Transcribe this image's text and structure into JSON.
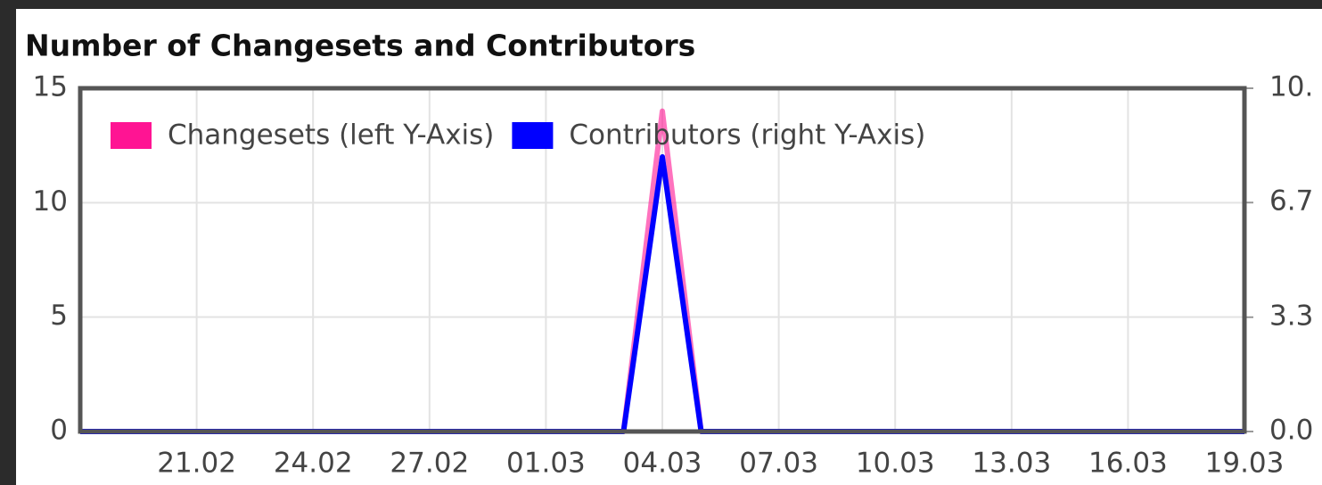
{
  "chart_data": {
    "type": "line",
    "title": "Number of Changesets and Contributors",
    "categories": [
      null,
      null,
      null,
      "21.02",
      null,
      null,
      "24.02",
      null,
      null,
      "27.02",
      null,
      null,
      "01.03",
      null,
      null,
      "04.03",
      null,
      null,
      "07.03",
      null,
      null,
      "10.03",
      null,
      null,
      "13.03",
      null,
      null,
      "16.03",
      null,
      null,
      "19.03"
    ],
    "series": [
      {
        "name": "Changesets (left Y-Axis)",
        "color": "#ff1493",
        "values": [
          0,
          0,
          0,
          0,
          0,
          0,
          0,
          0,
          0,
          0,
          0,
          0,
          0,
          0,
          0,
          14,
          0,
          0,
          0,
          0,
          0,
          0,
          0,
          0,
          0,
          0,
          0,
          0,
          0,
          0,
          0
        ]
      },
      {
        "name": "Contributors (right Y-Axis)",
        "color": "#0000ff",
        "axis": "y2",
        "values": [
          0,
          0,
          0,
          0,
          0,
          0,
          0,
          0,
          0,
          0,
          0,
          0,
          0,
          0,
          0,
          8,
          0,
          0,
          0,
          0,
          0,
          0,
          0,
          0,
          0,
          0,
          0,
          0,
          0,
          0,
          0
        ]
      }
    ],
    "ylim": [
      0,
      15
    ],
    "yticks": [
      0,
      5,
      10,
      15
    ],
    "y2lim": [
      0,
      10
    ],
    "y2ticks": [
      {
        "value": 0,
        "label": "0.0"
      },
      {
        "value": 3.33,
        "label": "3.3"
      },
      {
        "value": 6.67,
        "label": "6.7"
      },
      {
        "value": 10,
        "label": "10."
      }
    ],
    "grid": true,
    "legend": "top-left"
  }
}
